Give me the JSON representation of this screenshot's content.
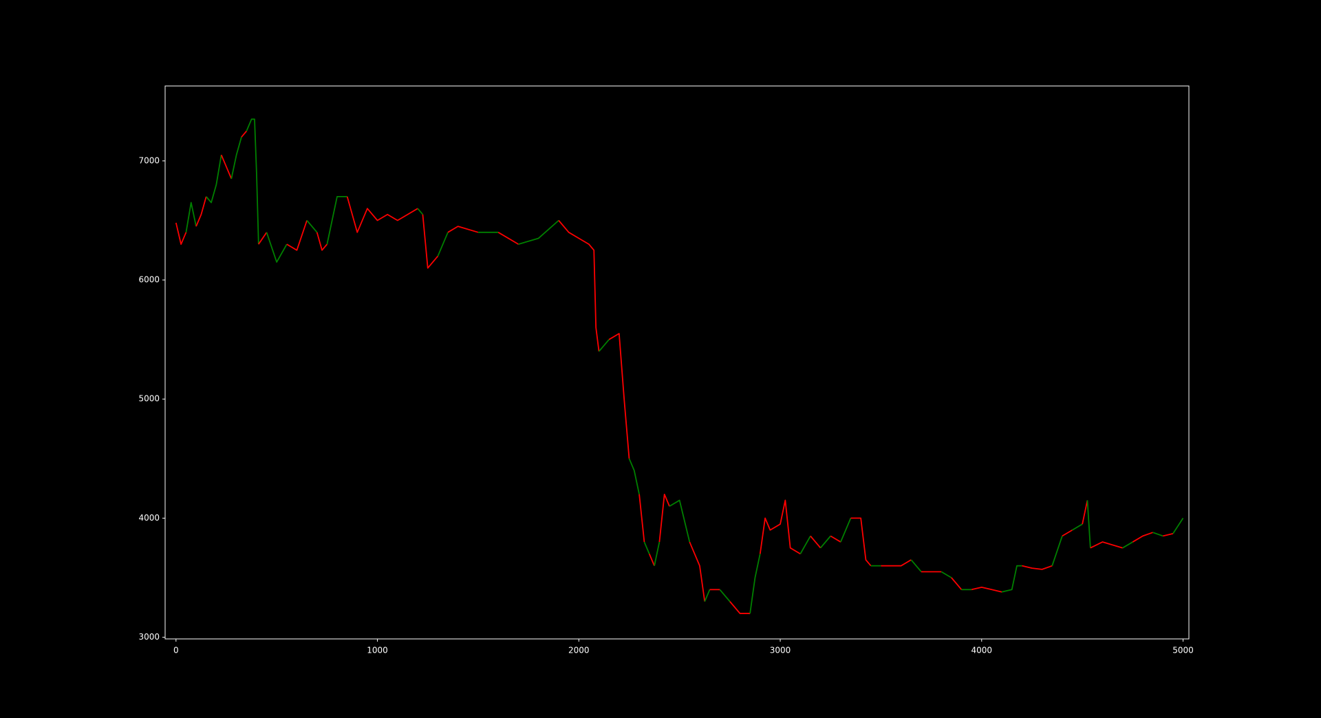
{
  "chart_data": {
    "type": "line",
    "xlim": [
      -54,
      5029
    ],
    "ylim": [
      2986,
      7629
    ],
    "xticks": [
      0,
      1000,
      2000,
      3000,
      4000,
      5000
    ],
    "yticks": [
      3000,
      4000,
      5000,
      6000,
      7000
    ],
    "x": [
      0,
      25,
      50,
      75,
      100,
      125,
      150,
      175,
      200,
      225,
      250,
      275,
      300,
      325,
      350,
      375,
      390,
      400,
      410,
      450,
      500,
      550,
      600,
      650,
      700,
      725,
      750,
      800,
      850,
      900,
      950,
      1000,
      1050,
      1100,
      1150,
      1200,
      1225,
      1250,
      1300,
      1350,
      1400,
      1500,
      1600,
      1700,
      1800,
      1900,
      1950,
      2000,
      2050,
      2075,
      2085,
      2100,
      2150,
      2200,
      2225,
      2250,
      2275,
      2300,
      2325,
      2350,
      2375,
      2400,
      2425,
      2450,
      2500,
      2550,
      2600,
      2625,
      2650,
      2700,
      2750,
      2800,
      2850,
      2875,
      2900,
      2925,
      2950,
      3000,
      3025,
      3050,
      3100,
      3150,
      3200,
      3250,
      3300,
      3350,
      3400,
      3425,
      3450,
      3500,
      3550,
      3600,
      3650,
      3700,
      3750,
      3800,
      3850,
      3900,
      3950,
      4000,
      4050,
      4100,
      4150,
      4175,
      4200,
      4250,
      4300,
      4350,
      4400,
      4450,
      4500,
      4525,
      4540,
      4600,
      4700,
      4750,
      4800,
      4850,
      4900,
      4950,
      5000
    ],
    "series": [
      {
        "values": [
          6480,
          6300,
          6400,
          6650,
          6450,
          6550,
          6700,
          6650,
          6800,
          7050,
          6950,
          6850,
          7050,
          7200,
          7250,
          7350,
          7350,
          6900,
          6300,
          6400,
          6150,
          6300,
          6250,
          6500,
          6400,
          6250,
          6300,
          6700,
          6700,
          6400,
          6600,
          6500,
          6550,
          6500,
          6550,
          6600,
          6550,
          6100,
          6200,
          6400,
          6450,
          6400,
          6400,
          6300,
          6350,
          6500,
          6400,
          6350,
          6300,
          6250,
          5600,
          5400,
          5500,
          5550,
          5000,
          4500,
          4400,
          4200,
          3800,
          3700,
          3600,
          3800,
          4200,
          4100,
          4150,
          3800,
          3600,
          3300,
          3400,
          3400,
          3300,
          3200,
          3200,
          3500,
          3700,
          4000,
          3900,
          3950,
          4150,
          3750,
          3700,
          3850,
          3750,
          3850,
          3800,
          4000,
          4000,
          3650,
          3600,
          3600,
          3600,
          3600,
          3650,
          3550,
          3550,
          3550,
          3500,
          3400,
          3400,
          3420,
          3400,
          3380,
          3400,
          3600,
          3600,
          3580,
          3570,
          3600,
          3850,
          3900,
          3950,
          4150,
          3750,
          3800,
          3750,
          3800,
          3850,
          3880,
          3850,
          3870,
          4000
        ],
        "colors": [
          "red",
          "red",
          "green",
          "green",
          "red",
          "red",
          "green",
          "green",
          "green",
          "red",
          "red",
          "green",
          "green",
          "red",
          "green",
          "green",
          "green",
          "green",
          "red",
          "green",
          "green",
          "red",
          "red",
          "green",
          "red",
          "red",
          "green",
          "green",
          "red",
          "red",
          "red",
          "red",
          "red",
          "red",
          "red",
          "green",
          "red",
          "red",
          "green",
          "red",
          "red",
          "green",
          "red",
          "green",
          "green",
          "red",
          "red",
          "red",
          "red",
          "red",
          "red",
          "green",
          "red",
          "red",
          "red",
          "green",
          "green",
          "red",
          "green",
          "red",
          "green",
          "red",
          "red",
          "green",
          "green",
          "red",
          "red",
          "green",
          "red",
          "green",
          "red",
          "red",
          "green",
          "green",
          "red",
          "red",
          "red",
          "red",
          "red",
          "red",
          "green",
          "red",
          "green",
          "red",
          "green",
          "red",
          "red",
          "red",
          "green",
          "red",
          "red",
          "red",
          "green",
          "red",
          "red",
          "green",
          "red",
          "green",
          "red",
          "red",
          "red",
          "green",
          "green",
          "green",
          "red",
          "red",
          "red",
          "green",
          "red",
          "green",
          "red",
          "green",
          "red",
          "red",
          "green",
          "red",
          "red",
          "green",
          "red",
          "green",
          "green"
        ]
      }
    ]
  }
}
